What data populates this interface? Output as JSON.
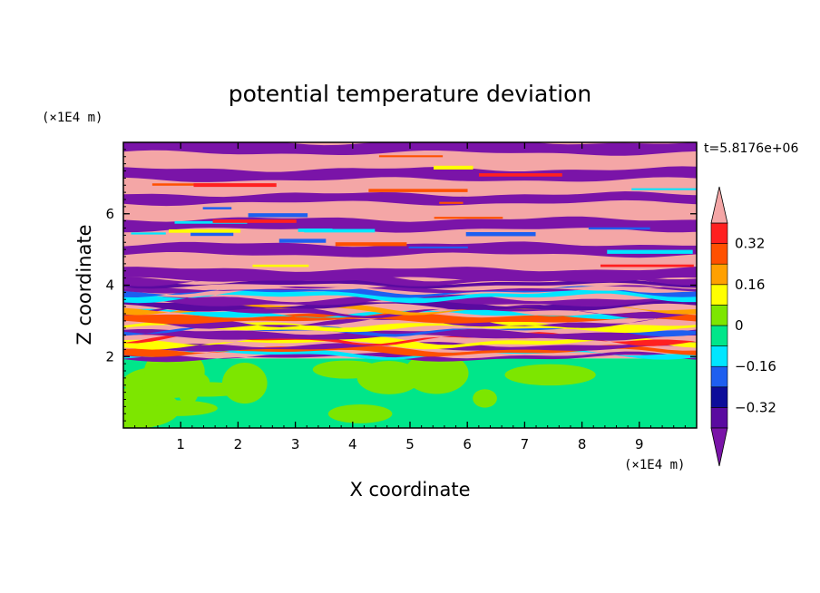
{
  "chart_data": {
    "type": "heatmap",
    "title": "potential temperature deviation",
    "xlabel": "X coordinate",
    "ylabel": "Z coordinate",
    "x_unit": "(×1E4 m)",
    "y_unit": "(×1E4 m)",
    "time_label": "t=5.8176e+06",
    "xlim": [
      0,
      10
    ],
    "ylim": [
      0,
      8
    ],
    "xticks": [
      "1",
      "2",
      "3",
      "4",
      "5",
      "6",
      "7",
      "8",
      "9"
    ],
    "yticks": [
      "2",
      "4",
      "6"
    ],
    "colorbar": {
      "levels": [
        -0.4,
        -0.32,
        -0.24,
        -0.16,
        -0.08,
        0,
        0.08,
        0.16,
        0.24,
        0.32,
        0.4
      ],
      "colors": [
        "#5a0aa0",
        "#0d0d9a",
        "#1e5ff0",
        "#00e6ff",
        "#00e68a",
        "#7de600",
        "#ffff00",
        "#ffa000",
        "#ff5000",
        "#ff2020"
      ],
      "over_color": "#f4a6a6",
      "under_color": "#7a14a8",
      "tick_labels": [
        {
          "value": 0.32,
          "label": "0.32"
        },
        {
          "value": 0.16,
          "label": "0.16"
        },
        {
          "value": 0,
          "label": "0"
        },
        {
          "value": -0.16,
          "label": "−0.16"
        },
        {
          "value": -0.32,
          "label": "−0.32"
        }
      ]
    },
    "stratified_layer": {
      "z_start": 1.95,
      "description_levels": "banded alternating over/under values above z≈2"
    },
    "bands_upper": [
      {
        "z0": 7.7,
        "z1": 8.0,
        "level": "under"
      },
      {
        "z0": 7.25,
        "z1": 7.7,
        "level": "over"
      },
      {
        "z0": 6.95,
        "z1": 7.25,
        "level": "under"
      },
      {
        "z0": 6.55,
        "z1": 6.95,
        "level": "over"
      },
      {
        "z0": 6.3,
        "z1": 6.55,
        "level": "under"
      },
      {
        "z0": 5.85,
        "z1": 6.3,
        "level": "over"
      },
      {
        "z0": 5.55,
        "z1": 5.85,
        "level": "under"
      },
      {
        "z0": 5.15,
        "z1": 5.55,
        "level": "over"
      },
      {
        "z0": 4.85,
        "z1": 5.15,
        "level": "under"
      },
      {
        "z0": 4.45,
        "z1": 4.85,
        "level": "over"
      },
      {
        "z0": 4.15,
        "z1": 4.45,
        "level": "under"
      }
    ]
  }
}
